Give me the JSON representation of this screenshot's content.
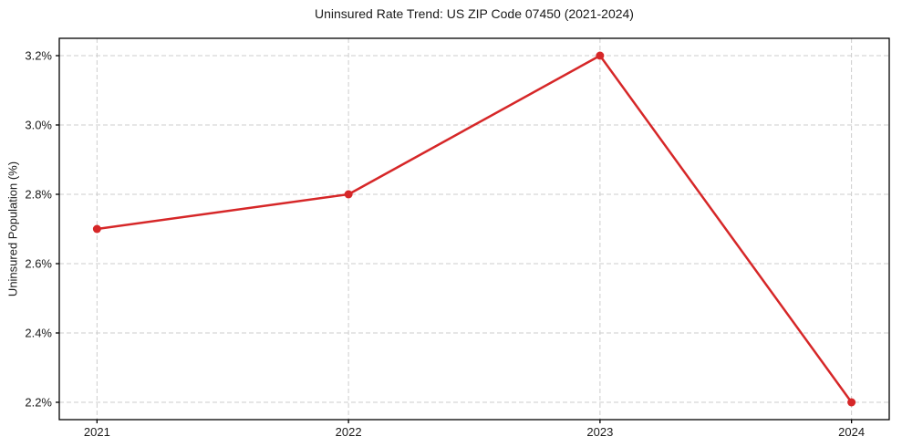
{
  "chart_data": {
    "type": "line",
    "title": "Uninsured Rate Trend: US ZIP Code 07450 (2021-2024)",
    "xlabel": "",
    "ylabel": "Uninsured Population (%)",
    "x": [
      2021,
      2022,
      2023,
      2024
    ],
    "x_tick_labels": [
      "2021",
      "2022",
      "2023",
      "2024"
    ],
    "series": [
      {
        "name": "Uninsured Rate",
        "values": [
          2.7,
          2.8,
          3.2,
          2.2
        ]
      }
    ],
    "y_ticks": [
      2.2,
      2.4,
      2.6,
      2.8,
      3.0,
      3.2
    ],
    "y_tick_labels": [
      "2.2%",
      "2.4%",
      "2.6%",
      "2.8%",
      "3.0%",
      "3.2%"
    ],
    "ylim": [
      2.15,
      3.25
    ],
    "x_margin_frac": 0.05,
    "grid": true,
    "legend": "none",
    "colors": {
      "line": "#d62728",
      "marker": "#d62728",
      "grid": "#cccccc",
      "axis": "#000000",
      "text": "#1a1a1a",
      "background": "#ffffff"
    }
  }
}
